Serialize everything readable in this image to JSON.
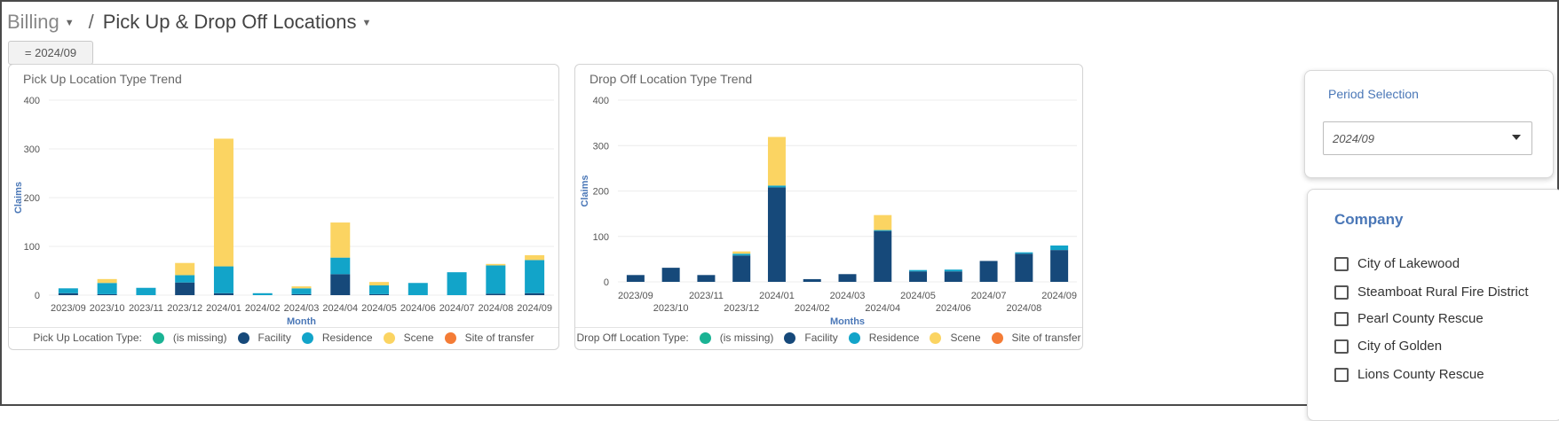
{
  "breadcrumb": {
    "parent": "Billing",
    "current": "Pick Up & Drop Off Locations"
  },
  "filter_chip": "= 2024/09",
  "colors": {
    "missing": "#1ab394",
    "facility": "#16497a",
    "residence": "#12a4c9",
    "scene": "#fbd462",
    "transfer": "#f47c36"
  },
  "charts_text": {
    "pickup_title": "Pick Up Location Type Trend",
    "dropoff_title": "Drop Off Location Type Trend"
  },
  "legends": {
    "pickup_label": "Pick Up Location Type:",
    "dropoff_label": "Drop Off Location Type:",
    "items": [
      "(is missing)",
      "Facility",
      "Residence",
      "Scene",
      "Site of transfer"
    ]
  },
  "period_selection": {
    "label": "Period Selection",
    "value": "2024/09"
  },
  "company_filter": {
    "title": "Company",
    "options": [
      "City of Lakewood",
      "Steamboat Rural Fire District",
      "Pearl County Rescue",
      "City of Golden",
      "Lions County Rescue"
    ]
  },
  "chart_data": [
    {
      "type": "bar",
      "title": "Pick Up Location Type Trend",
      "xlabel": "Month",
      "ylabel": "Claims",
      "ylim": [
        0,
        400
      ],
      "yticks": [
        0,
        100,
        200,
        300,
        400
      ],
      "stacked": true,
      "grid": true,
      "legend_position": "bottom",
      "categories": [
        "2023/09",
        "2023/10",
        "2023/11",
        "2023/12",
        "2024/01",
        "2024/02",
        "2024/03",
        "2024/04",
        "2024/05",
        "2024/06",
        "2024/07",
        "2024/08",
        "2024/09"
      ],
      "series": [
        {
          "name": "Facility",
          "values": [
            4,
            2,
            0,
            26,
            4,
            0,
            2,
            43,
            2,
            0,
            0,
            3,
            4
          ]
        },
        {
          "name": "Residence",
          "values": [
            10,
            23,
            15,
            15,
            55,
            4,
            12,
            34,
            18,
            25,
            47,
            58,
            68
          ]
        },
        {
          "name": "Scene",
          "values": [
            0,
            8,
            0,
            25,
            262,
            0,
            4,
            72,
            7,
            0,
            0,
            3,
            10
          ]
        }
      ]
    },
    {
      "type": "bar",
      "title": "Drop Off Location Type Trend",
      "xlabel": "Months",
      "ylabel": "Claims",
      "ylim": [
        0,
        400
      ],
      "yticks": [
        0,
        100,
        200,
        300,
        400
      ],
      "stacked": true,
      "grid": true,
      "legend_position": "bottom",
      "categories": [
        "2023/09",
        "2023/10",
        "2023/11",
        "2023/12",
        "2024/01",
        "2024/02",
        "2024/03",
        "2024/04",
        "2024/05",
        "2024/06",
        "2024/07",
        "2024/08",
        "2024/09"
      ],
      "series": [
        {
          "name": "Facility",
          "values": [
            15,
            31,
            15,
            58,
            208,
            6,
            17,
            112,
            23,
            23,
            46,
            62,
            70
          ]
        },
        {
          "name": "Residence",
          "values": [
            0,
            0,
            0,
            4,
            4,
            0,
            0,
            2,
            3,
            4,
            0,
            3,
            10
          ]
        },
        {
          "name": "Scene",
          "values": [
            0,
            0,
            0,
            5,
            107,
            0,
            0,
            33,
            0,
            0,
            0,
            0,
            0
          ]
        }
      ]
    }
  ]
}
